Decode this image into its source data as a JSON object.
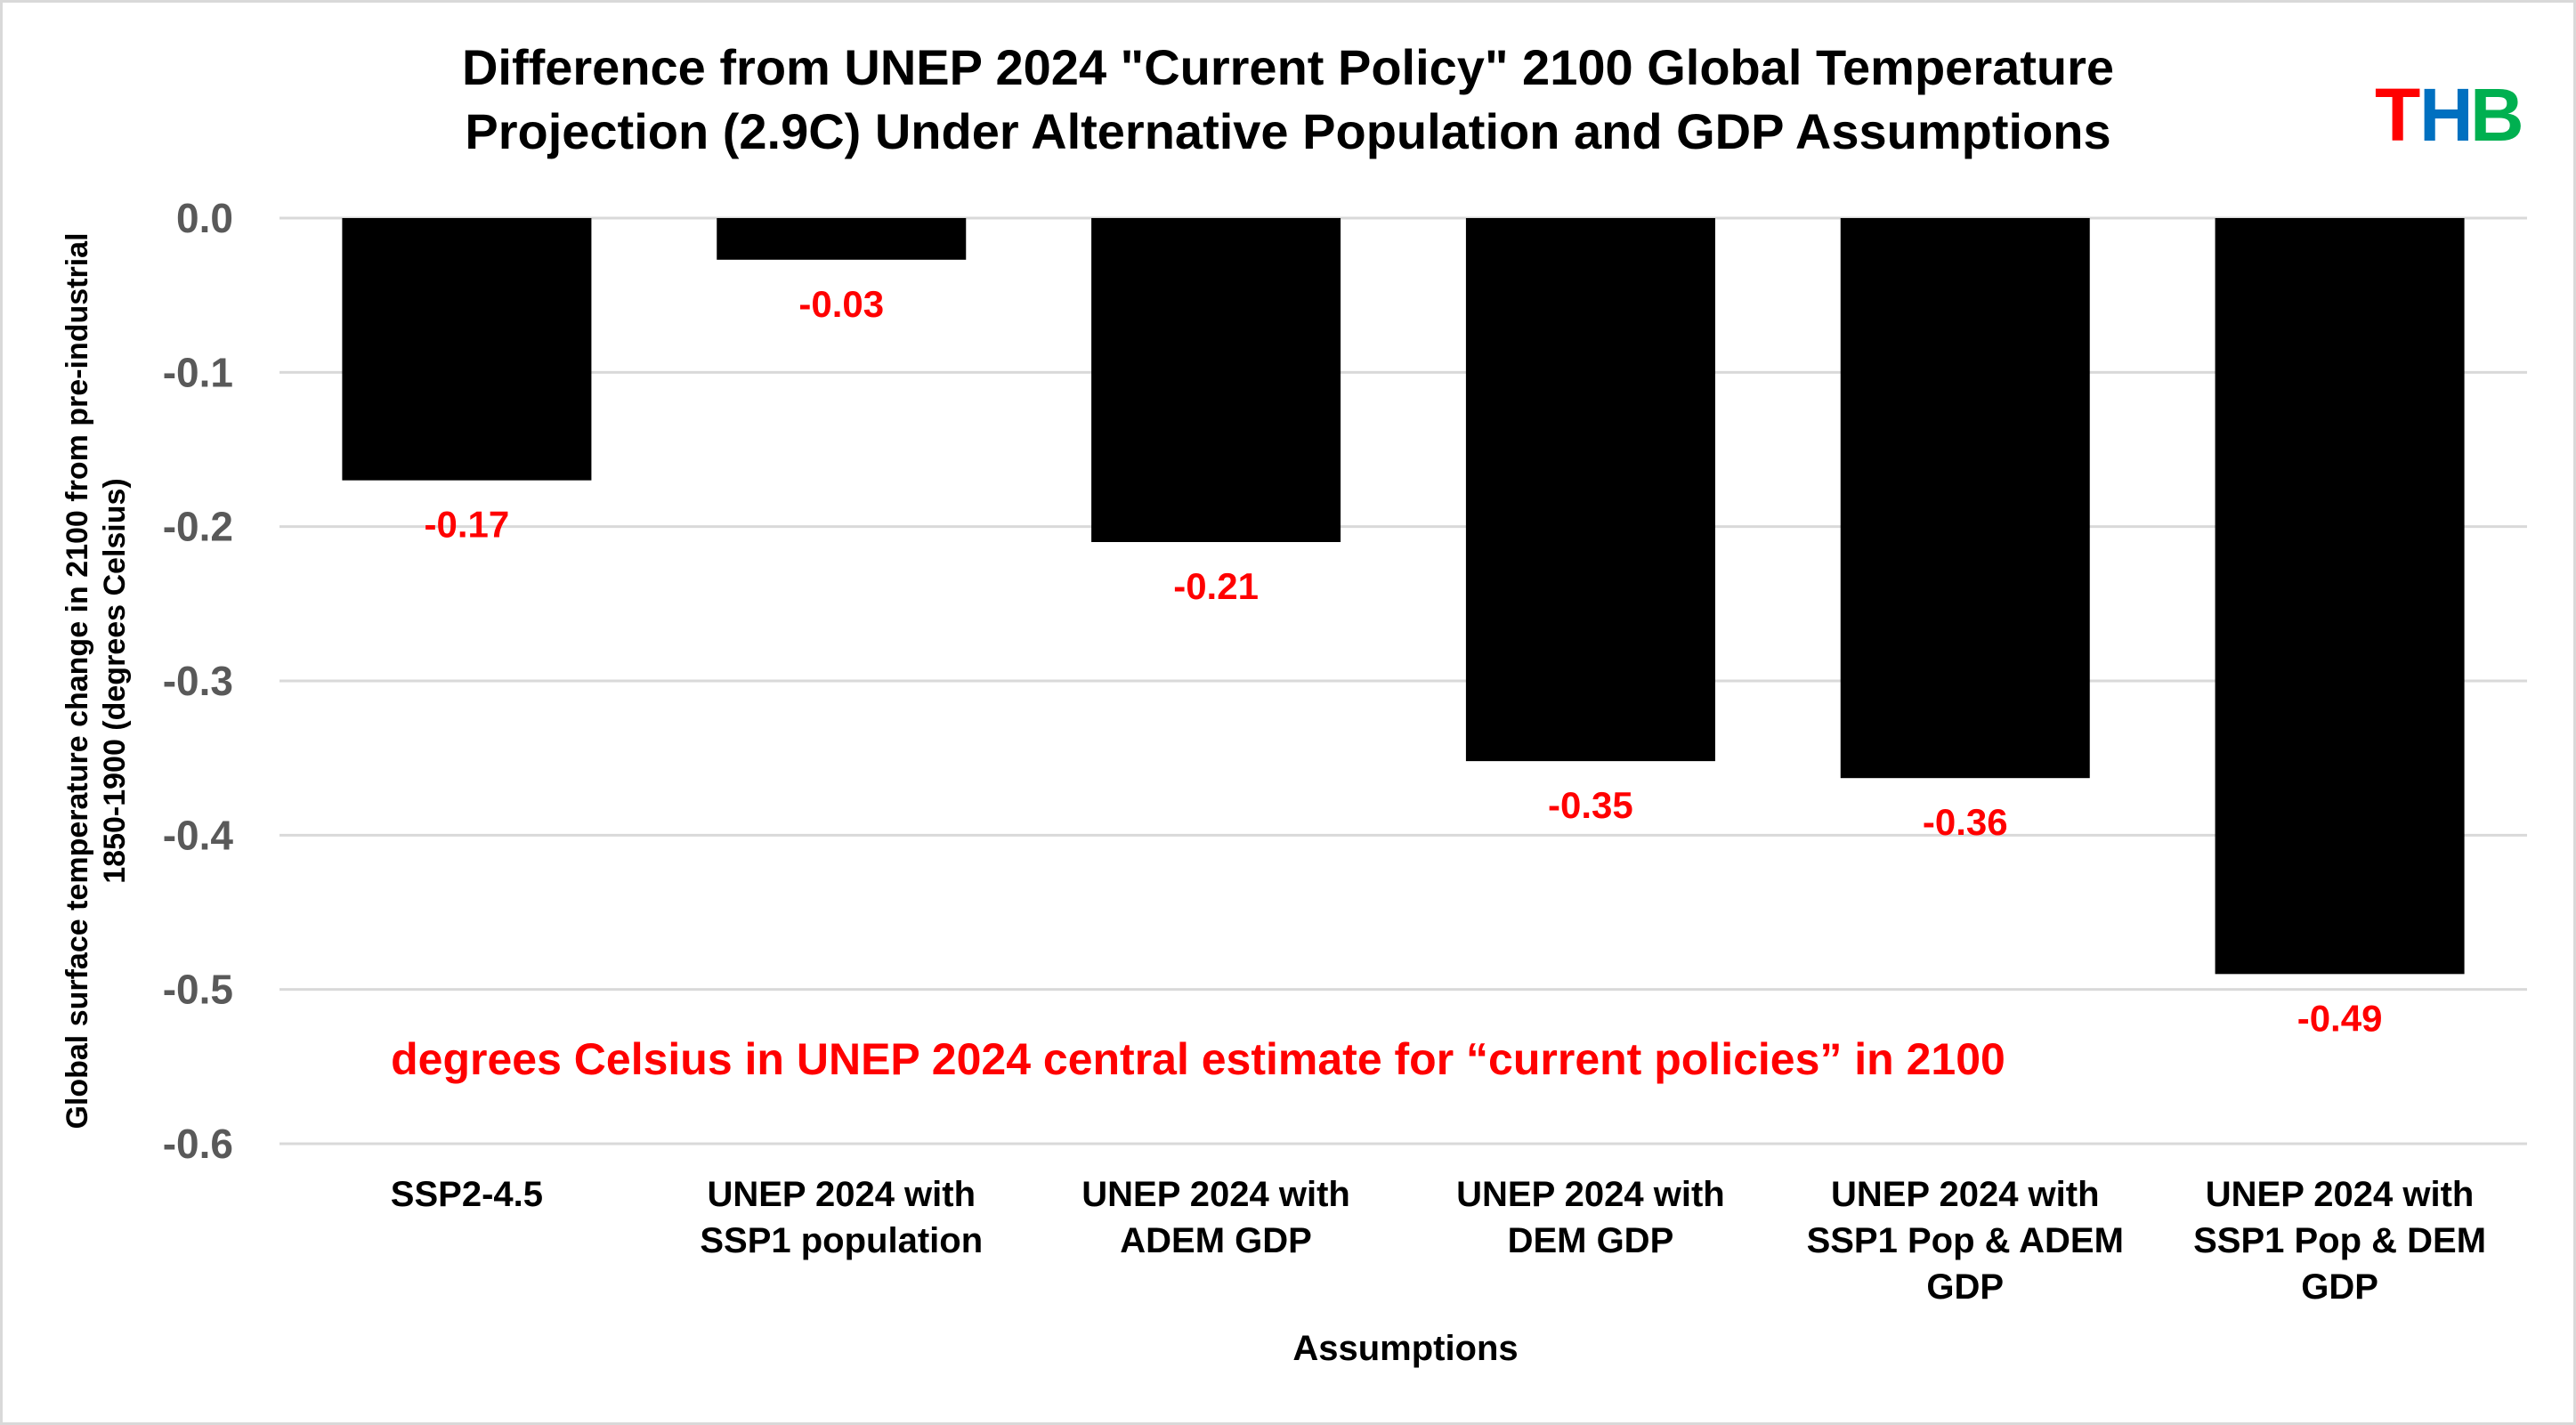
{
  "chart_data": {
    "type": "bar",
    "title": [
      "Difference from UNEP 2024 \"Current Policy\" 2100 Global Temperature",
      "Projection (2.9C) Under Alternative Population and GDP Assumptions"
    ],
    "xlabel": "Assumptions",
    "ylabel": [
      "Global surface temperature change in 2100 from pre-industrial",
      "1850-1900 (degrees Celsius)"
    ],
    "ylim": [
      -0.6,
      0.0
    ],
    "yticks": [
      "0.0",
      "-0.1",
      "-0.2",
      "-0.3",
      "-0.4",
      "-0.5",
      "-0.6"
    ],
    "grid": true,
    "categories": [
      [
        "SSP2-4.5"
      ],
      [
        "UNEP 2024 with",
        "SSP1 population"
      ],
      [
        "UNEP 2024 with",
        "ADEM GDP"
      ],
      [
        "UNEP 2024 with",
        "DEM GDP"
      ],
      [
        "UNEP 2024 with",
        "SSP1 Pop & ADEM",
        "GDP"
      ],
      [
        "UNEP 2024 with",
        "SSP1 Pop & DEM",
        "GDP"
      ]
    ],
    "values": [
      -0.17,
      -0.027,
      -0.21,
      -0.352,
      -0.363,
      -0.49
    ],
    "data_labels": [
      "-0.17",
      "-0.03",
      "-0.21",
      "-0.35",
      "-0.36",
      "-0.49"
    ],
    "annotation": "degrees Celsius in UNEP 2024 central estimate for “current policies” in 2100",
    "bar_color": "#000000",
    "label_color": "#ff0000"
  },
  "logo": {
    "text": "THB",
    "letters": [
      "T",
      "H",
      "B"
    ],
    "colors": [
      "#ff0000",
      "#0070c0",
      "#00b050"
    ]
  }
}
